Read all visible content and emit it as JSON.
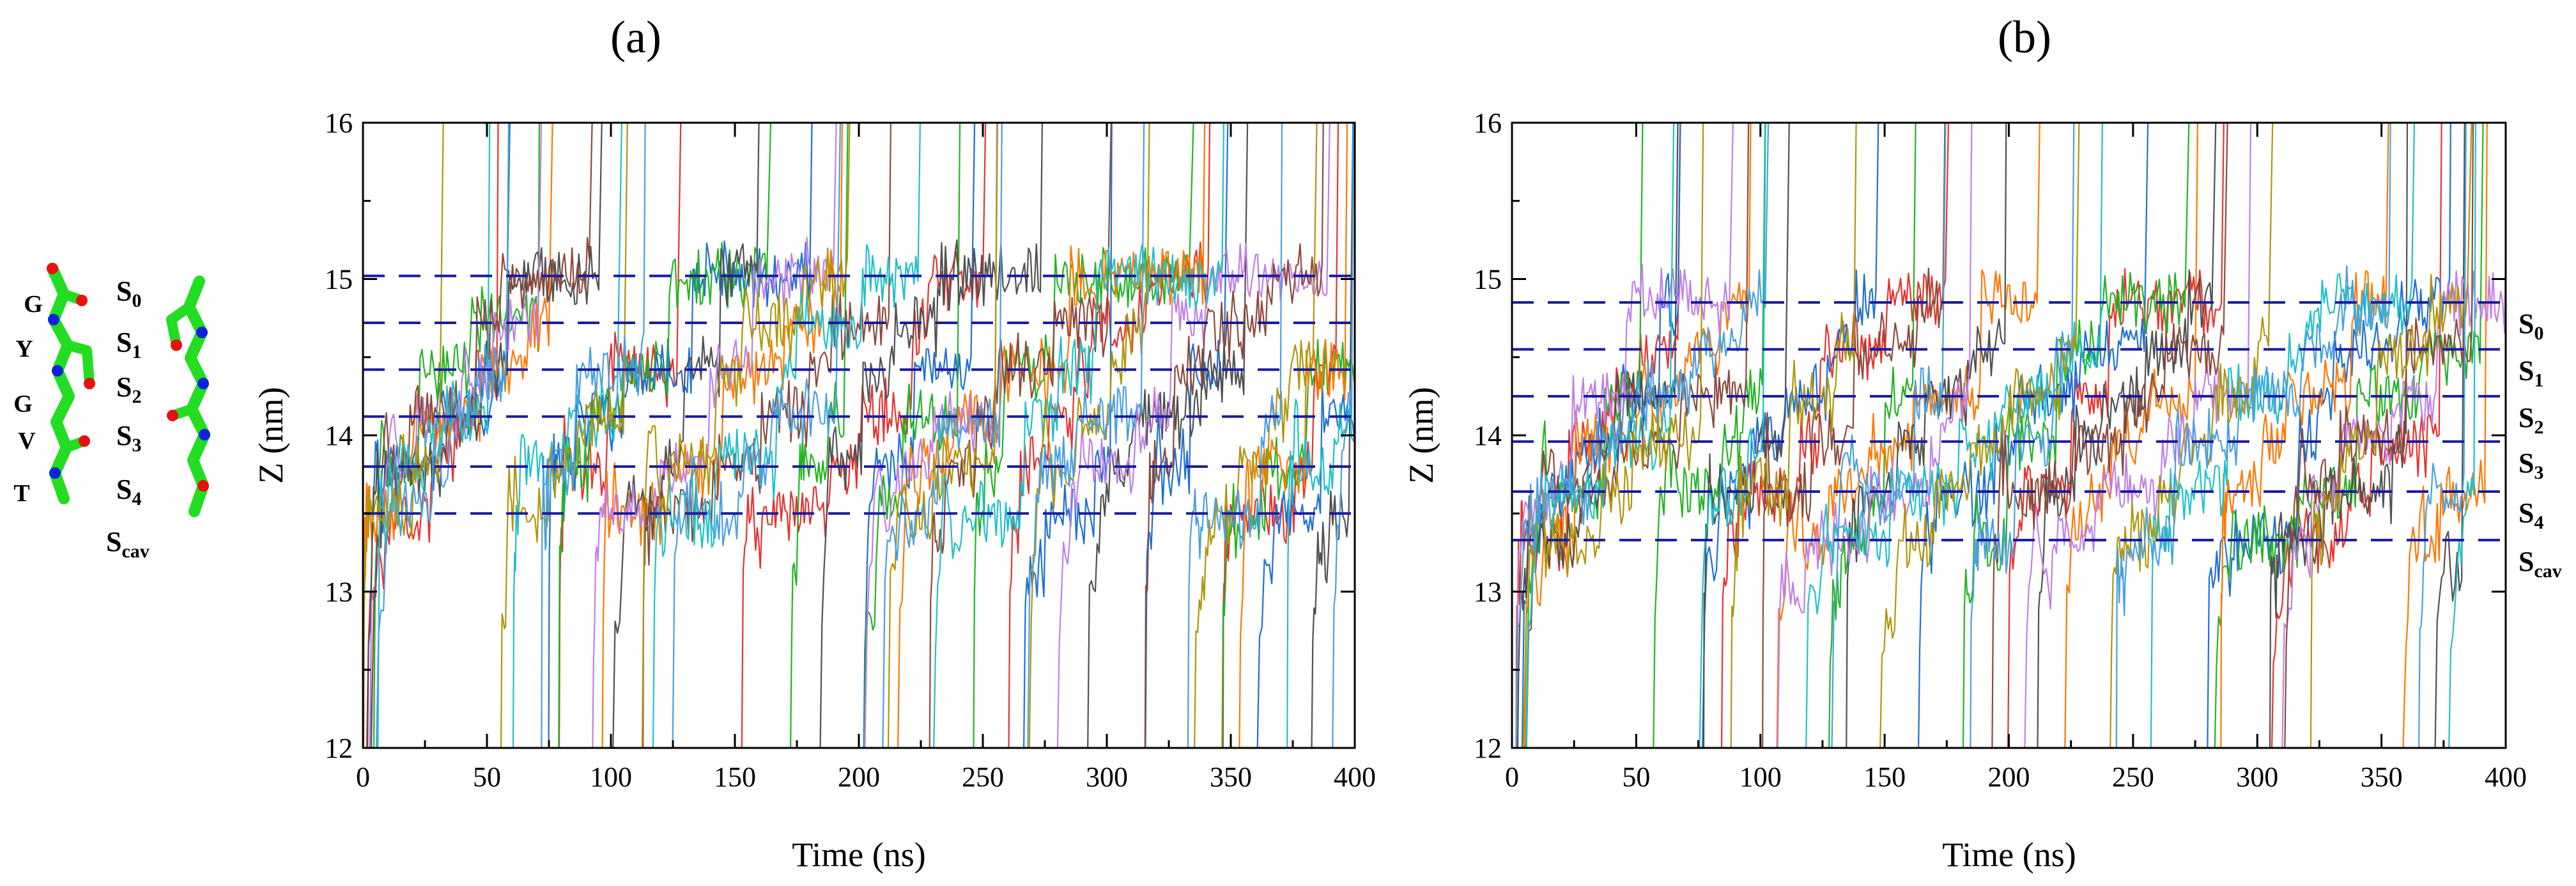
{
  "figure": {
    "panel_a_label": "(a)",
    "panel_b_label": "(b)"
  },
  "colors": {
    "trace_palette": [
      "#e8322d",
      "#1f6fd6",
      "#22b422",
      "#ff7800",
      "#505050",
      "#c080e8",
      "#8b4a3c",
      "#20c0c8",
      "#b0960a",
      "#4aa0e0"
    ],
    "site_line": "#1a1aa0",
    "carbon": "#22dd22",
    "oxygen": "#e81010",
    "nitrogen": "#1020e0"
  },
  "structure": {
    "residues": [
      "G",
      "Y",
      "G",
      "V",
      "T"
    ],
    "sites": [
      {
        "main": "S",
        "sub": "0"
      },
      {
        "main": "S",
        "sub": "1"
      },
      {
        "main": "S",
        "sub": "2"
      },
      {
        "main": "S",
        "sub": "3"
      },
      {
        "main": "S",
        "sub": "4"
      },
      {
        "main": "S",
        "sub": "cav"
      }
    ]
  },
  "chart_data": [
    {
      "type": "line",
      "title": "(a)",
      "xlabel": "Time (ns)",
      "ylabel": "Z (nm)",
      "xlim": [
        0,
        400
      ],
      "ylim": [
        12,
        16
      ],
      "xticks": [
        0,
        50,
        100,
        150,
        200,
        250,
        300,
        350,
        400
      ],
      "yticks": [
        12,
        13,
        14,
        15,
        16
      ],
      "series_description": "ion z-coordinate trajectories (10 colored traces)",
      "site_lines": [
        {
          "name": "S0",
          "z": 15.02
        },
        {
          "name": "S1",
          "z": 14.72
        },
        {
          "name": "S2",
          "z": 14.42
        },
        {
          "name": "S3",
          "z": 14.12
        },
        {
          "name": "S4",
          "z": 13.8
        },
        {
          "name": "Scav",
          "z": 13.5
        }
      ],
      "trace_seed": 17,
      "trace_span": [
        0,
        395
      ]
    },
    {
      "type": "line",
      "title": "(b)",
      "xlabel": "Time (ns)",
      "ylabel": "Z (nm)",
      "xlim": [
        0,
        400
      ],
      "ylim": [
        12,
        16
      ],
      "xticks": [
        0,
        50,
        100,
        150,
        200,
        250,
        300,
        350,
        400
      ],
      "yticks": [
        12,
        13,
        14,
        15,
        16
      ],
      "series_description": "ion z-coordinate trajectories (10 colored traces)",
      "site_lines": [
        {
          "name": "S0",
          "z": 14.85
        },
        {
          "name": "S1",
          "z": 14.55
        },
        {
          "name": "S2",
          "z": 14.25
        },
        {
          "name": "S3",
          "z": 13.96
        },
        {
          "name": "S4",
          "z": 13.64
        },
        {
          "name": "Scav",
          "z": 13.33
        }
      ],
      "site_labels": [
        {
          "main": "S",
          "sub": "0"
        },
        {
          "main": "S",
          "sub": "1"
        },
        {
          "main": "S",
          "sub": "2"
        },
        {
          "main": "S",
          "sub": "3"
        },
        {
          "main": "S",
          "sub": "4"
        },
        {
          "main": "S",
          "sub": "cav"
        }
      ],
      "trace_seed": 91,
      "trace_span": [
        0,
        382
      ]
    }
  ]
}
